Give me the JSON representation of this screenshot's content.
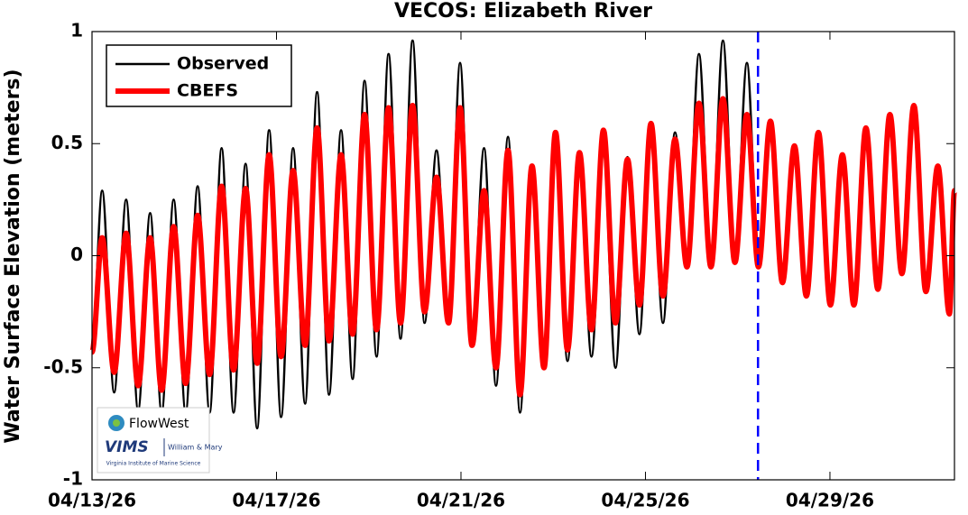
{
  "chart_data": {
    "type": "line",
    "title": "VECOS: Elizabeth River",
    "y_label": "Water Surface Elevation (meters)",
    "x": [
      0,
      0.22,
      0.48,
      0.74,
      1,
      1.26,
      1.51,
      1.77,
      2.03,
      2.29,
      2.55,
      2.81,
      3.07,
      3.33,
      3.58,
      3.84,
      4.1,
      4.36,
      4.62,
      4.88,
      5.14,
      5.4,
      5.65,
      5.91,
      6.17,
      6.43,
      6.69,
      6.95,
      7.21,
      7.47,
      7.73,
      7.98,
      8.24,
      8.5,
      8.76,
      9.02,
      9.28,
      9.54,
      9.8,
      10.05,
      10.31,
      10.57,
      10.83,
      11.09,
      11.35,
      11.61,
      11.87,
      12.12,
      12.38,
      12.64,
      12.9,
      13.16,
      13.42,
      13.68,
      13.94,
      14.2,
      14.45,
      14.71,
      14.97,
      15.23,
      15.49,
      15.75,
      16.01,
      16.27,
      16.52,
      16.78,
      17.04,
      17.3,
      17.56,
      17.82,
      18.08,
      18.34,
      18.59,
      18.7
    ],
    "series": [
      {
        "name": "Observed",
        "color": "#000000",
        "width": 2.5,
        "values": [
          -0.43,
          0.29,
          -0.61,
          0.25,
          -0.69,
          0.19,
          -0.7,
          0.25,
          -0.7,
          0.31,
          -0.7,
          0.48,
          -0.7,
          0.41,
          -0.77,
          0.56,
          -0.72,
          0.48,
          -0.66,
          0.73,
          -0.62,
          0.56,
          -0.55,
          0.78,
          -0.45,
          0.9,
          -0.37,
          0.96,
          -0.3,
          0.47,
          -0.3,
          0.86,
          -0.36,
          0.48,
          -0.58,
          0.53,
          -0.7,
          0.4,
          -0.5,
          0.5,
          -0.47,
          0.42,
          -0.45,
          0.45,
          -0.5,
          0.44,
          -0.35,
          0.55,
          -0.3,
          0.55,
          -0.05,
          0.9,
          -0.03,
          0.96,
          -0.02,
          0.86,
          -0.03,
          null,
          null,
          null,
          null,
          null,
          null,
          null,
          null,
          null,
          null,
          null,
          null,
          null,
          null,
          null,
          null,
          null
        ]
      },
      {
        "name": "CBEFS",
        "color": "#ff0000",
        "width": 6,
        "values": [
          -0.43,
          0.08,
          -0.52,
          0.1,
          -0.58,
          0.08,
          -0.6,
          0.13,
          -0.57,
          0.18,
          -0.53,
          0.31,
          -0.51,
          0.3,
          -0.48,
          0.45,
          -0.45,
          0.38,
          -0.4,
          0.57,
          -0.38,
          0.45,
          -0.35,
          0.63,
          -0.33,
          0.66,
          -0.3,
          0.67,
          -0.25,
          0.35,
          -0.3,
          0.66,
          -0.4,
          0.29,
          -0.5,
          0.47,
          -0.62,
          0.4,
          -0.5,
          0.55,
          -0.42,
          0.46,
          -0.33,
          0.56,
          -0.3,
          0.43,
          -0.22,
          0.59,
          -0.18,
          0.52,
          -0.05,
          0.68,
          -0.05,
          0.7,
          -0.03,
          0.63,
          -0.05,
          0.6,
          -0.12,
          0.49,
          -0.18,
          0.55,
          -0.22,
          0.45,
          -0.22,
          0.57,
          -0.15,
          0.63,
          -0.08,
          0.67,
          -0.16,
          0.4,
          -0.26,
          0.29
        ]
      }
    ],
    "xlim": [
      0,
      18.7
    ],
    "xticks": [
      {
        "value": 0,
        "label": "04/13/26"
      },
      {
        "value": 4,
        "label": "04/17/26"
      },
      {
        "value": 8,
        "label": "04/21/26"
      },
      {
        "value": 12,
        "label": "04/25/26"
      },
      {
        "value": 16,
        "label": "04/29/26"
      }
    ],
    "ylim": [
      -1,
      1
    ],
    "yticks": [
      -1,
      -0.5,
      0,
      0.5,
      1
    ],
    "grid": false,
    "legend": "northwest",
    "vline": {
      "x": 14.44,
      "color": "#0000ff"
    }
  },
  "logo": {
    "top": "FlowWest",
    "mark": "VIMS",
    "partner": "William & Mary",
    "caption": "Virginia Institute of Marine Science"
  }
}
